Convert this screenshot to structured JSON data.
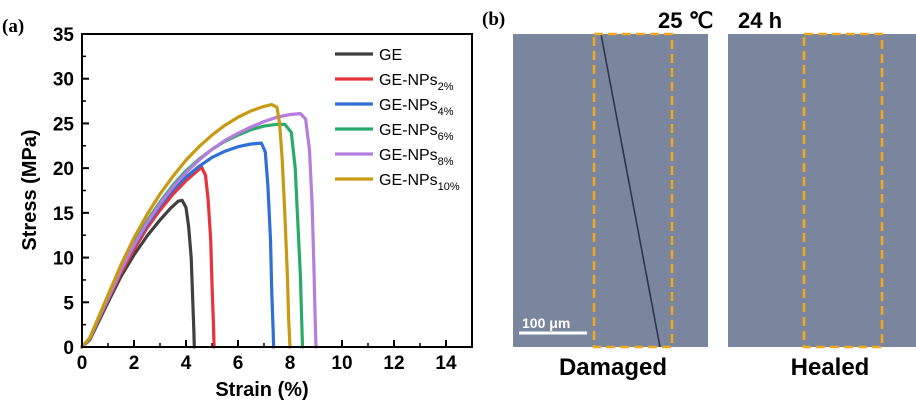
{
  "panel_a": {
    "label": "(a)"
  },
  "panel_b": {
    "label": "(b)",
    "temperature": "25 ℃",
    "time": "24 h",
    "scale_bar": "100 μm",
    "left_caption": "Damaged",
    "right_caption": "Healed",
    "image_color": "#7a869d",
    "box_color": "#f0a820"
  },
  "chart_data": {
    "type": "line",
    "xlabel": "Strain (%)",
    "ylabel": "Stress (MPa)",
    "xlim": [
      0,
      15
    ],
    "ylim": [
      0,
      35
    ],
    "xticks": [
      0,
      2,
      4,
      6,
      8,
      10,
      12,
      14
    ],
    "yticks": [
      0,
      5,
      10,
      15,
      20,
      25,
      30,
      35
    ],
    "legend_position": "top-right",
    "series": [
      {
        "name": "GE",
        "base": "GE",
        "sub": "",
        "color": "#404040",
        "points": [
          [
            0,
            0
          ],
          [
            0.3,
            0.8
          ],
          [
            0.6,
            2.6
          ],
          [
            1.0,
            5.0
          ],
          [
            1.5,
            7.9
          ],
          [
            2.0,
            10.3
          ],
          [
            2.5,
            12.4
          ],
          [
            3.0,
            14.2
          ],
          [
            3.4,
            15.5
          ],
          [
            3.7,
            16.3
          ],
          [
            3.85,
            16.4
          ],
          [
            4.0,
            15.6
          ],
          [
            4.1,
            13.5
          ],
          [
            4.2,
            10.0
          ],
          [
            4.25,
            6.0
          ],
          [
            4.3,
            2.0
          ],
          [
            4.32,
            0
          ]
        ]
      },
      {
        "name": "GE-NPs2%",
        "base": "GE-NPs",
        "sub": "2%",
        "color": "#e8333b",
        "points": [
          [
            0,
            0
          ],
          [
            0.3,
            0.9
          ],
          [
            0.6,
            2.8
          ],
          [
            1.0,
            5.3
          ],
          [
            1.5,
            8.3
          ],
          [
            2.0,
            10.9
          ],
          [
            2.5,
            13.3
          ],
          [
            3.0,
            15.3
          ],
          [
            3.5,
            17.1
          ],
          [
            4.0,
            18.6
          ],
          [
            4.4,
            19.6
          ],
          [
            4.6,
            20.1
          ],
          [
            4.75,
            19.2
          ],
          [
            4.85,
            16.5
          ],
          [
            4.95,
            12.0
          ],
          [
            5.0,
            7.0
          ],
          [
            5.05,
            3.0
          ],
          [
            5.08,
            0
          ]
        ]
      },
      {
        "name": "GE-NPs4%",
        "base": "GE-NPs",
        "sub": "4%",
        "color": "#2f6fd6",
        "points": [
          [
            0,
            0
          ],
          [
            0.3,
            0.9
          ],
          [
            0.6,
            2.9
          ],
          [
            1.0,
            5.4
          ],
          [
            1.5,
            8.6
          ],
          [
            2.0,
            11.3
          ],
          [
            2.5,
            13.7
          ],
          [
            3.0,
            15.8
          ],
          [
            3.5,
            17.6
          ],
          [
            4.0,
            19.0
          ],
          [
            4.5,
            20.2
          ],
          [
            5.0,
            21.2
          ],
          [
            5.5,
            21.9
          ],
          [
            6.0,
            22.4
          ],
          [
            6.5,
            22.7
          ],
          [
            6.9,
            22.8
          ],
          [
            7.05,
            21.8
          ],
          [
            7.15,
            18.0
          ],
          [
            7.25,
            12.0
          ],
          [
            7.3,
            6.0
          ],
          [
            7.35,
            2.0
          ],
          [
            7.37,
            0
          ]
        ]
      },
      {
        "name": "GE-NPs6%",
        "base": "GE-NPs",
        "sub": "6%",
        "color": "#2aaa6a",
        "points": [
          [
            0,
            0
          ],
          [
            0.3,
            1.0
          ],
          [
            0.6,
            3.0
          ],
          [
            1.0,
            5.5
          ],
          [
            1.5,
            8.8
          ],
          [
            2.0,
            11.6
          ],
          [
            2.5,
            14.1
          ],
          [
            3.0,
            16.2
          ],
          [
            3.5,
            18.1
          ],
          [
            4.0,
            19.7
          ],
          [
            4.5,
            21.0
          ],
          [
            5.0,
            22.1
          ],
          [
            5.5,
            23.0
          ],
          [
            6.0,
            23.7
          ],
          [
            6.5,
            24.3
          ],
          [
            7.0,
            24.7
          ],
          [
            7.5,
            24.9
          ],
          [
            7.8,
            24.9
          ],
          [
            8.05,
            24.0
          ],
          [
            8.2,
            20.0
          ],
          [
            8.3,
            14.0
          ],
          [
            8.4,
            8.0
          ],
          [
            8.45,
            3.0
          ],
          [
            8.48,
            0
          ]
        ]
      },
      {
        "name": "GE-NPs8%",
        "base": "GE-NPs",
        "sub": "8%",
        "color": "#b57ddc",
        "points": [
          [
            0,
            0
          ],
          [
            0.3,
            1.0
          ],
          [
            0.6,
            3.0
          ],
          [
            1.0,
            5.4
          ],
          [
            1.5,
            8.6
          ],
          [
            2.0,
            11.4
          ],
          [
            2.5,
            13.9
          ],
          [
            3.0,
            16.0
          ],
          [
            3.5,
            17.9
          ],
          [
            4.0,
            19.5
          ],
          [
            4.5,
            20.9
          ],
          [
            5.0,
            22.1
          ],
          [
            5.5,
            23.1
          ],
          [
            6.0,
            23.9
          ],
          [
            6.5,
            24.6
          ],
          [
            7.0,
            25.2
          ],
          [
            7.5,
            25.7
          ],
          [
            8.0,
            26.0
          ],
          [
            8.4,
            26.1
          ],
          [
            8.6,
            25.5
          ],
          [
            8.75,
            22.0
          ],
          [
            8.85,
            16.0
          ],
          [
            8.92,
            9.0
          ],
          [
            8.97,
            3.0
          ],
          [
            9.0,
            0
          ]
        ]
      },
      {
        "name": "GE-NPs10%",
        "base": "GE-NPs",
        "sub": "10%",
        "color": "#c89a12",
        "points": [
          [
            0,
            0
          ],
          [
            0.3,
            1.0
          ],
          [
            0.6,
            3.1
          ],
          [
            1.0,
            5.8
          ],
          [
            1.5,
            9.2
          ],
          [
            2.0,
            12.2
          ],
          [
            2.5,
            14.8
          ],
          [
            3.0,
            17.1
          ],
          [
            3.5,
            19.1
          ],
          [
            4.0,
            20.9
          ],
          [
            4.5,
            22.4
          ],
          [
            5.0,
            23.7
          ],
          [
            5.5,
            24.8
          ],
          [
            6.0,
            25.7
          ],
          [
            6.5,
            26.4
          ],
          [
            7.0,
            26.9
          ],
          [
            7.3,
            27.1
          ],
          [
            7.5,
            26.8
          ],
          [
            7.6,
            25.0
          ],
          [
            7.7,
            21.0
          ],
          [
            7.8,
            15.0
          ],
          [
            7.9,
            8.0
          ],
          [
            7.95,
            3.0
          ],
          [
            8.0,
            0
          ]
        ]
      }
    ]
  }
}
